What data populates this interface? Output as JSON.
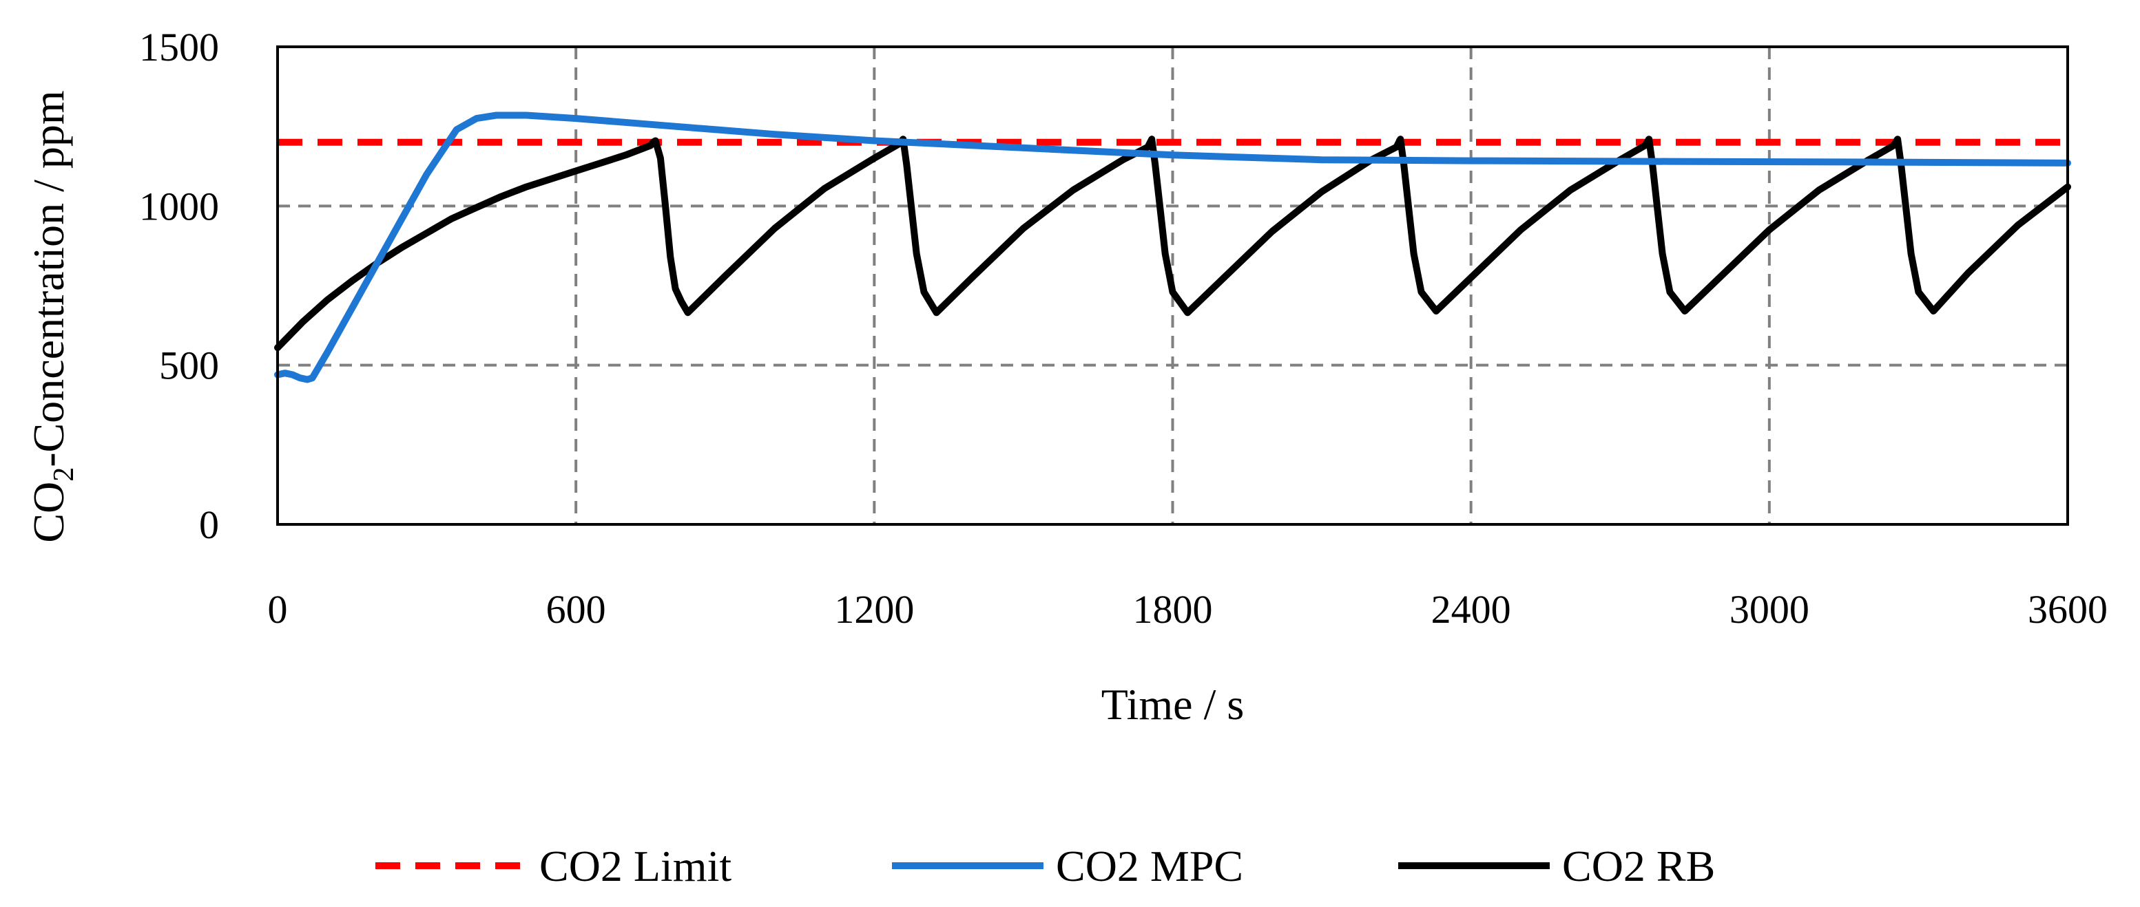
{
  "chart_data": {
    "type": "line",
    "title": "",
    "xlabel": "Time / s",
    "ylabel": {
      "prefix": "CO",
      "subscript": "2",
      "suffix": "-Concentration / ppm"
    },
    "xlim": [
      0,
      3600
    ],
    "ylim": [
      0,
      1500
    ],
    "xticks": [
      0,
      600,
      1200,
      1800,
      2400,
      3000,
      3600
    ],
    "yticks": [
      0,
      500,
      1000,
      1500
    ],
    "xtick_labels": [
      "0",
      "600",
      "1200",
      "1800",
      "2400",
      "3000",
      "3600"
    ],
    "ytick_labels": [
      "0",
      "500",
      "1000",
      "1500"
    ],
    "grid": true,
    "legend_position": "bottom",
    "series": [
      {
        "name": "CO2 Limit",
        "color": "#ff0000",
        "style": "dashed",
        "points": [
          [
            0,
            1200
          ],
          [
            3600,
            1200
          ]
        ]
      },
      {
        "name": "CO2 MPC",
        "color": "#1f77d4",
        "style": "solid",
        "points": [
          [
            0,
            470
          ],
          [
            15,
            475
          ],
          [
            30,
            470
          ],
          [
            45,
            460
          ],
          [
            60,
            455
          ],
          [
            70,
            460
          ],
          [
            100,
            540
          ],
          [
            150,
            680
          ],
          [
            200,
            820
          ],
          [
            250,
            960
          ],
          [
            300,
            1100
          ],
          [
            360,
            1240
          ],
          [
            400,
            1275
          ],
          [
            440,
            1285
          ],
          [
            500,
            1285
          ],
          [
            600,
            1275
          ],
          [
            800,
            1250
          ],
          [
            1000,
            1225
          ],
          [
            1200,
            1205
          ],
          [
            1400,
            1190
          ],
          [
            1600,
            1175
          ],
          [
            1800,
            1160
          ],
          [
            2000,
            1150
          ],
          [
            2100,
            1145
          ],
          [
            2400,
            1142
          ],
          [
            2800,
            1140
          ],
          [
            3200,
            1138
          ],
          [
            3600,
            1135
          ]
        ]
      },
      {
        "name": "CO2 RB",
        "color": "#000000",
        "style": "solid",
        "points": [
          [
            0,
            555
          ],
          [
            50,
            635
          ],
          [
            100,
            705
          ],
          [
            150,
            765
          ],
          [
            200,
            820
          ],
          [
            250,
            870
          ],
          [
            300,
            915
          ],
          [
            350,
            960
          ],
          [
            400,
            995
          ],
          [
            450,
            1030
          ],
          [
            500,
            1060
          ],
          [
            550,
            1085
          ],
          [
            600,
            1110
          ],
          [
            650,
            1135
          ],
          [
            700,
            1160
          ],
          [
            750,
            1190
          ],
          [
            755,
            1200
          ],
          [
            760,
            1205
          ],
          [
            770,
            1150
          ],
          [
            780,
            1000
          ],
          [
            790,
            840
          ],
          [
            800,
            740
          ],
          [
            812,
            700
          ],
          [
            825,
            665
          ],
          [
            900,
            780
          ],
          [
            1000,
            930
          ],
          [
            1100,
            1055
          ],
          [
            1200,
            1150
          ],
          [
            1250,
            1195
          ],
          [
            1258,
            1210
          ],
          [
            1265,
            1130
          ],
          [
            1275,
            990
          ],
          [
            1285,
            850
          ],
          [
            1300,
            730
          ],
          [
            1325,
            665
          ],
          [
            1400,
            780
          ],
          [
            1500,
            930
          ],
          [
            1600,
            1050
          ],
          [
            1700,
            1145
          ],
          [
            1750,
            1185
          ],
          [
            1758,
            1210
          ],
          [
            1765,
            1130
          ],
          [
            1775,
            990
          ],
          [
            1785,
            850
          ],
          [
            1800,
            730
          ],
          [
            1830,
            665
          ],
          [
            1900,
            770
          ],
          [
            2000,
            920
          ],
          [
            2100,
            1045
          ],
          [
            2200,
            1145
          ],
          [
            2250,
            1185
          ],
          [
            2258,
            1210
          ],
          [
            2265,
            1130
          ],
          [
            2275,
            990
          ],
          [
            2285,
            850
          ],
          [
            2300,
            730
          ],
          [
            2330,
            670
          ],
          [
            2400,
            775
          ],
          [
            2500,
            925
          ],
          [
            2600,
            1050
          ],
          [
            2700,
            1145
          ],
          [
            2750,
            1190
          ],
          [
            2758,
            1210
          ],
          [
            2765,
            1130
          ],
          [
            2775,
            990
          ],
          [
            2785,
            850
          ],
          [
            2800,
            730
          ],
          [
            2830,
            670
          ],
          [
            2900,
            775
          ],
          [
            3000,
            925
          ],
          [
            3100,
            1050
          ],
          [
            3200,
            1145
          ],
          [
            3250,
            1190
          ],
          [
            3258,
            1210
          ],
          [
            3265,
            1130
          ],
          [
            3275,
            990
          ],
          [
            3285,
            850
          ],
          [
            3300,
            730
          ],
          [
            3330,
            670
          ],
          [
            3400,
            790
          ],
          [
            3500,
            940
          ],
          [
            3600,
            1060
          ]
        ]
      }
    ]
  }
}
